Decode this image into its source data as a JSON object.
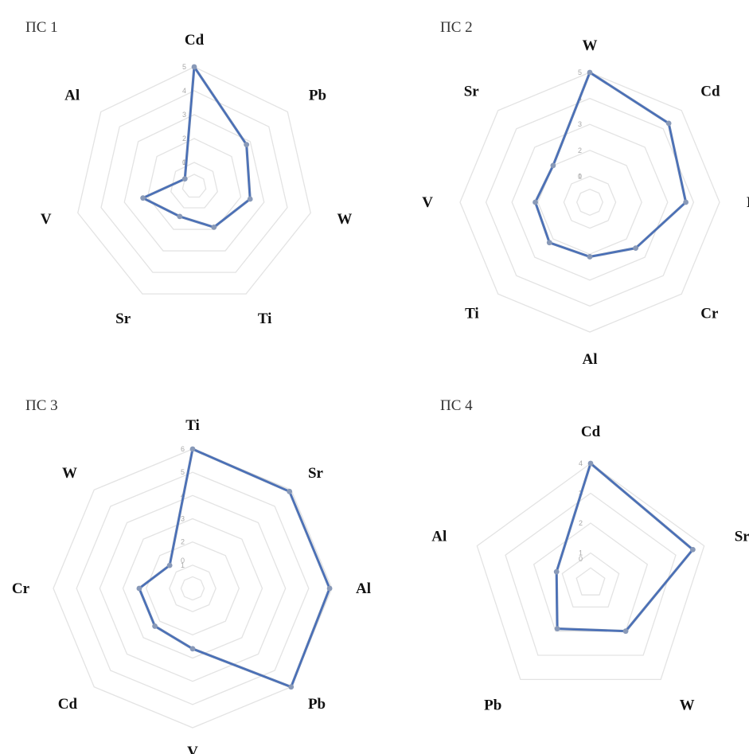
{
  "chart_data": [
    {
      "type": "radar",
      "title": "ПС 1",
      "axes": [
        "Cd",
        "Pb",
        "W",
        "Ti",
        "Sr",
        "V",
        "Al"
      ],
      "ticks": [
        "0",
        "1",
        "2",
        "3",
        "4",
        "5"
      ],
      "rmin": 0,
      "rmax": 5,
      "series": [
        {
          "values": [
            5.0,
            2.8,
            2.4,
            1.9,
            1.4,
            2.2,
            0.5
          ]
        }
      ]
    },
    {
      "type": "radar",
      "title": "ПС 2",
      "axes": [
        "W",
        "Cd",
        "Pb",
        "Cr",
        "Al",
        "Ti",
        "V",
        "Sr"
      ],
      "ticks": [
        "0",
        "1",
        "2",
        "3",
        "4",
        "5"
      ],
      "rmin": 0,
      "rmax": 5,
      "series": [
        {
          "values": [
            5.0,
            4.3,
            3.7,
            2.5,
            2.1,
            2.2,
            2.1,
            2.0
          ]
        }
      ]
    },
    {
      "type": "radar",
      "title": "ПС 3",
      "axes": [
        "Ti",
        "Sr",
        "Al",
        "Pb",
        "V",
        "Cd",
        "Cr",
        "W"
      ],
      "ticks": [
        "0",
        "1",
        "2",
        "3",
        "4",
        "5",
        "6"
      ],
      "rmin": 0,
      "rmax": 6,
      "series": [
        {
          "values": [
            6.0,
            5.9,
            5.9,
            6.0,
            2.6,
            2.3,
            2.3,
            1.4
          ]
        }
      ]
    },
    {
      "type": "radar",
      "title": "ПС 4",
      "axes": [
        "Cd",
        "Sr",
        "W",
        "Pb",
        "Al"
      ],
      "ticks": [
        "0",
        "1",
        "2",
        "3",
        "4"
      ],
      "rmin": 0,
      "rmax": 4,
      "series": [
        {
          "values": [
            4.0,
            3.6,
            2.0,
            1.9,
            1.2
          ]
        }
      ]
    }
  ],
  "style": {
    "line_color": "#6681b2",
    "highlight_color": "#2e5fbf",
    "point_color": "#8899b8",
    "grid_color": "#e3e3e3",
    "tick_color": "#a8a8a8"
  }
}
